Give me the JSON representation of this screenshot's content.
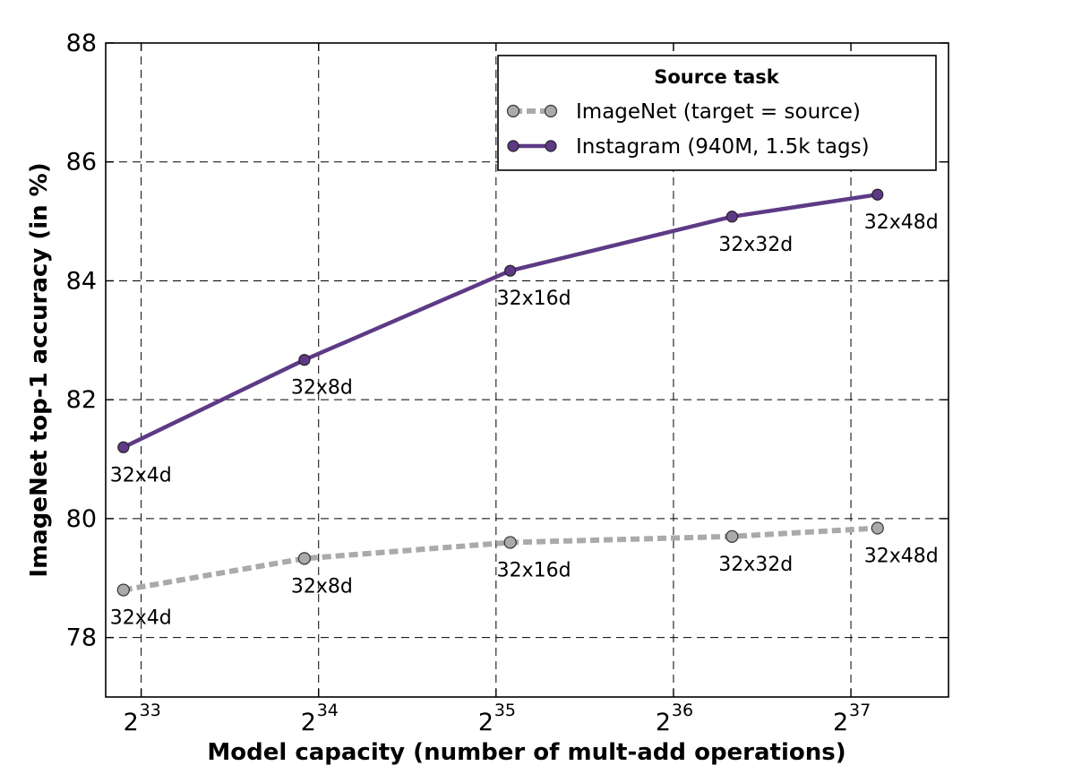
{
  "chart_data": {
    "type": "line",
    "xlabel": "Model capacity (number of mult-add operations)",
    "ylabel": "ImageNet top-1 accuracy (in %)",
    "x_scale": "log2",
    "x_tick_exponents": [
      "33",
      "34",
      "35",
      "36",
      "37"
    ],
    "x_tick_base": "2",
    "xlim_log2": [
      32.8,
      37.55
    ],
    "ylim": [
      77,
      88
    ],
    "yticks": [
      "78",
      "80",
      "82",
      "84",
      "86",
      "88"
    ],
    "grid": true,
    "legend": {
      "title": "Source task",
      "position": "top-right"
    },
    "series": [
      {
        "name": "ImageNet (target = source)",
        "color": "#aaaaaa",
        "style": "dashed",
        "x_log2": [
          32.9,
          33.92,
          35.08,
          36.33,
          37.15
        ],
        "y": [
          78.8,
          79.33,
          79.6,
          79.7,
          79.84
        ],
        "labels": [
          "32x4d",
          "32x8d",
          "32x16d",
          "32x32d",
          "32x48d"
        ]
      },
      {
        "name": "Instagram (940M, 1.5k tags)",
        "color": "#5e3a86",
        "style": "solid",
        "x_log2": [
          32.9,
          33.92,
          35.08,
          36.33,
          37.15
        ],
        "y": [
          81.2,
          82.67,
          84.17,
          85.08,
          85.45
        ],
        "labels": [
          "32x4d",
          "32x8d",
          "32x16d",
          "32x32d",
          "32x48d"
        ]
      }
    ]
  }
}
